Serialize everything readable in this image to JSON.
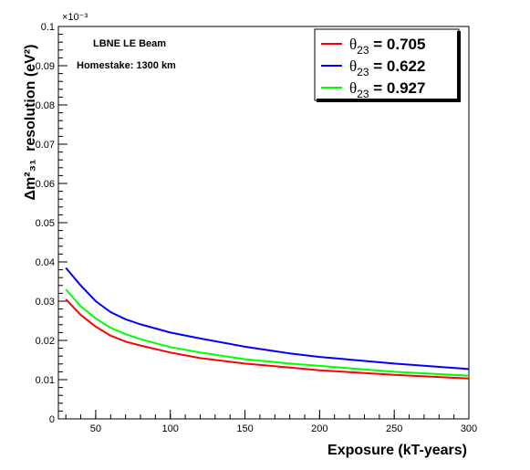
{
  "chart_data": {
    "type": "line",
    "title": "",
    "xlabel": "Exposure (kT-years)",
    "ylabel": "resolution (eV²)",
    "ylabel_symbol": "Δm²₃₁",
    "y_multiplier": "×10⁻³",
    "xlim": [
      25,
      300
    ],
    "ylim": [
      0,
      0.1
    ],
    "x_ticks": [
      50,
      100,
      150,
      200,
      250,
      300
    ],
    "y_ticks": [
      0,
      0.01,
      0.02,
      0.03,
      0.04,
      0.05,
      0.06,
      0.07,
      0.08,
      0.09,
      0.1
    ],
    "x": [
      30,
      40,
      50,
      60,
      70,
      80,
      100,
      120,
      150,
      180,
      200,
      250,
      300
    ],
    "series": [
      {
        "name": "θ23 = 0.705",
        "name_symbol": "θ",
        "name_sub": "23",
        "name_value": " = 0.705",
        "color": "#ff0000",
        "values": [
          0.0305,
          0.0265,
          0.0235,
          0.0212,
          0.0197,
          0.0187,
          0.0169,
          0.0155,
          0.0141,
          0.0131,
          0.0124,
          0.0112,
          0.0103
        ]
      },
      {
        "name": "θ23 = 0.622",
        "name_symbol": "θ",
        "name_sub": "23",
        "name_value": " = 0.622",
        "color": "#0000ff",
        "values": [
          0.0385,
          0.034,
          0.03,
          0.0272,
          0.0254,
          0.0241,
          0.022,
          0.0205,
          0.0184,
          0.0167,
          0.0158,
          0.0141,
          0.0127
        ]
      },
      {
        "name": "θ23 = 0.927",
        "name_symbol": "θ",
        "name_sub": "23",
        "name_value": " = 0.927",
        "color": "#00ff00",
        "values": [
          0.033,
          0.0287,
          0.0256,
          0.0232,
          0.0216,
          0.0203,
          0.0183,
          0.0169,
          0.0152,
          0.0141,
          0.0135,
          0.012,
          0.011
        ]
      }
    ],
    "annotations": [
      "LBNE LE Beam",
      "Homestake: 1300 km"
    ],
    "legend_position": "top-right",
    "grid": false
  }
}
